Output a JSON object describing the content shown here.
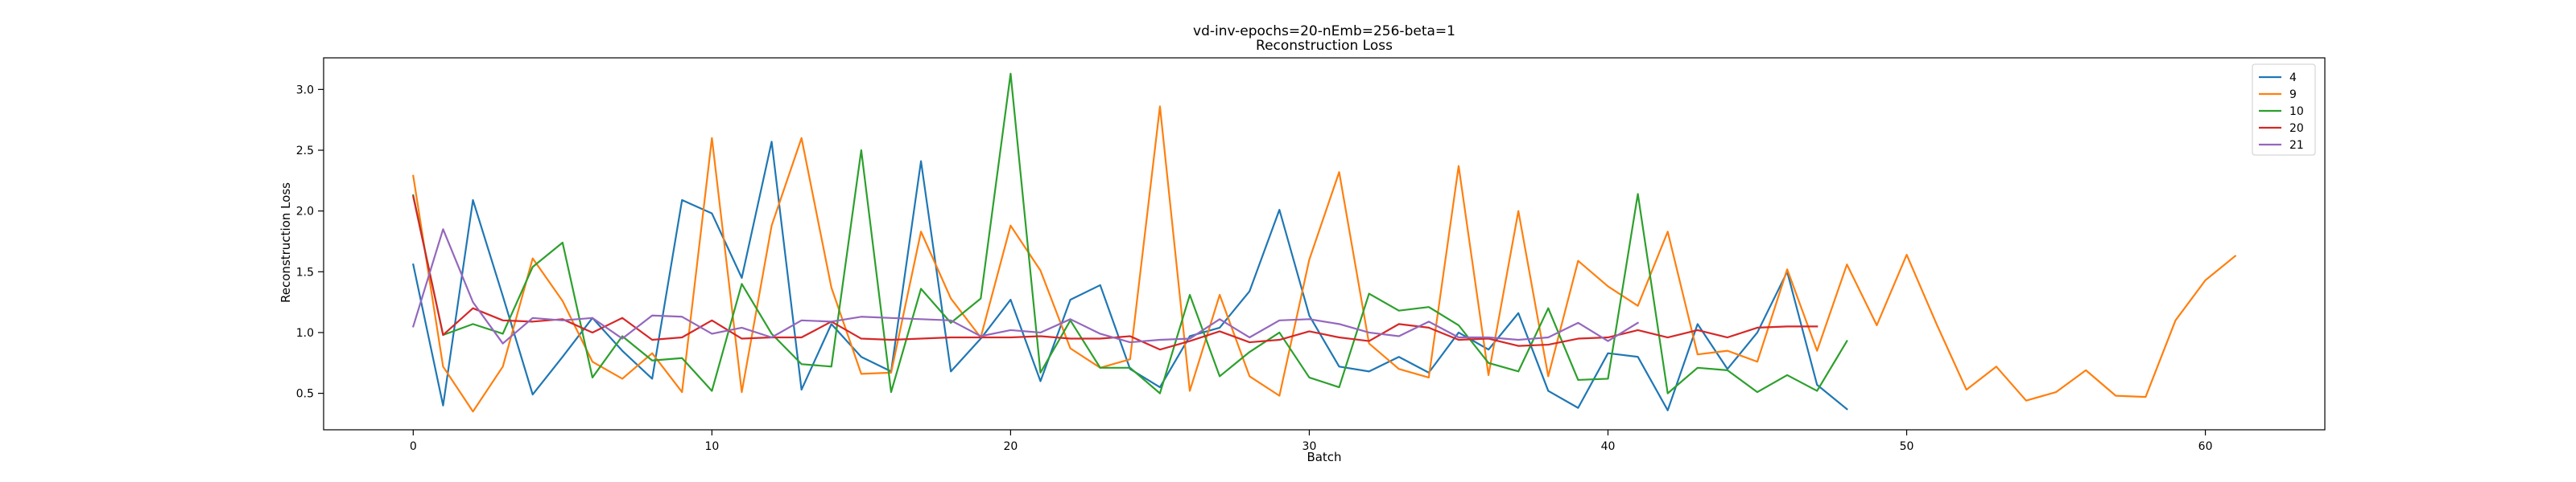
{
  "chart_data": {
    "type": "line",
    "title": "vd-inv-epochs=20-nEmb=256-beta=1",
    "subtitle": "Reconstruction Loss",
    "xlabel": "Batch",
    "ylabel": "Reconstruction Loss",
    "xlim": [
      -3,
      64
    ],
    "ylim": [
      0.2,
      3.26
    ],
    "xticks": [
      0,
      10,
      20,
      30,
      40,
      50,
      60
    ],
    "yticks": [
      0.5,
      1.0,
      1.5,
      2.0,
      2.5,
      3.0
    ],
    "ytick_labels": [
      "0.5",
      "1.0",
      "1.5",
      "2.0",
      "2.5",
      "3.0"
    ],
    "legend_position": "top-right",
    "grid": false,
    "series": [
      {
        "name": "4",
        "color": "#1f77b4",
        "values": [
          1.56,
          0.4,
          2.09,
          1.3,
          0.49,
          0.8,
          1.12,
          0.85,
          0.62,
          2.09,
          1.98,
          1.45,
          2.57,
          0.53,
          1.07,
          0.8,
          0.68,
          2.41,
          0.68,
          0.95,
          1.27,
          0.6,
          1.27,
          1.39,
          0.7,
          0.55,
          0.97,
          1.04,
          1.34,
          2.01,
          1.14,
          0.72,
          0.68,
          0.8,
          0.67,
          1.0,
          0.86,
          1.16,
          0.52,
          0.38,
          0.83,
          0.8,
          0.36,
          1.07,
          0.7,
          1.0,
          1.5,
          0.57,
          0.37
        ]
      },
      {
        "name": "9",
        "color": "#ff7f0e",
        "values": [
          2.29,
          0.72,
          0.35,
          0.72,
          1.61,
          1.26,
          0.76,
          0.62,
          0.83,
          0.51,
          2.6,
          0.51,
          1.88,
          2.6,
          1.37,
          0.66,
          0.67,
          1.83,
          1.28,
          0.96,
          1.88,
          1.51,
          0.87,
          0.71,
          0.78,
          2.86,
          0.52,
          1.31,
          0.64,
          0.48,
          1.6,
          2.32,
          0.91,
          0.7,
          0.63,
          2.37,
          0.65,
          2.0,
          0.64,
          1.59,
          1.38,
          1.22,
          1.83,
          0.82,
          0.85,
          0.76,
          1.52,
          0.85,
          1.56,
          1.06,
          1.64,
          1.07,
          0.53,
          0.72,
          0.44,
          0.51,
          0.69,
          0.48,
          0.47,
          1.1,
          1.43,
          1.63
        ]
      },
      {
        "name": "10",
        "color": "#2ca02c",
        "values": [
          2.13,
          0.98,
          1.07,
          0.99,
          1.54,
          1.74,
          0.63,
          0.97,
          0.77,
          0.79,
          0.52,
          1.4,
          0.99,
          0.74,
          0.72,
          2.5,
          0.51,
          1.36,
          1.08,
          1.28,
          3.13,
          0.67,
          1.1,
          0.71,
          0.71,
          0.5,
          1.31,
          0.64,
          0.84,
          1.0,
          0.63,
          0.55,
          1.32,
          1.18,
          1.21,
          1.06,
          0.75,
          0.68,
          1.2,
          0.61,
          0.62,
          2.14,
          0.5,
          0.71,
          0.69,
          0.51,
          0.65,
          0.52,
          0.93
        ]
      },
      {
        "name": "20",
        "color": "#d62728",
        "values": [
          2.12,
          0.98,
          1.2,
          1.1,
          1.09,
          1.11,
          1.0,
          1.12,
          0.94,
          0.96,
          1.1,
          0.95,
          0.96,
          0.96,
          1.09,
          0.95,
          0.94,
          0.95,
          0.96,
          0.96,
          0.96,
          0.97,
          0.95,
          0.95,
          0.97,
          0.86,
          0.93,
          1.01,
          0.92,
          0.94,
          1.01,
          0.96,
          0.93,
          1.07,
          1.04,
          0.94,
          0.95,
          0.89,
          0.9,
          0.95,
          0.96,
          1.02,
          0.96,
          1.02,
          0.96,
          1.04,
          1.05,
          1.05
        ]
      },
      {
        "name": "21",
        "color": "#9467bd",
        "values": [
          1.05,
          1.85,
          1.25,
          0.91,
          1.12,
          1.1,
          1.12,
          0.95,
          1.14,
          1.13,
          0.99,
          1.04,
          0.96,
          1.1,
          1.09,
          1.13,
          1.12,
          1.11,
          1.1,
          0.97,
          1.02,
          1.0,
          1.11,
          0.99,
          0.92,
          0.94,
          0.95,
          1.11,
          0.96,
          1.1,
          1.11,
          1.07,
          1.0,
          0.97,
          1.09,
          0.96,
          0.96,
          0.94,
          0.96,
          1.08,
          0.93,
          1.08
        ]
      }
    ]
  }
}
